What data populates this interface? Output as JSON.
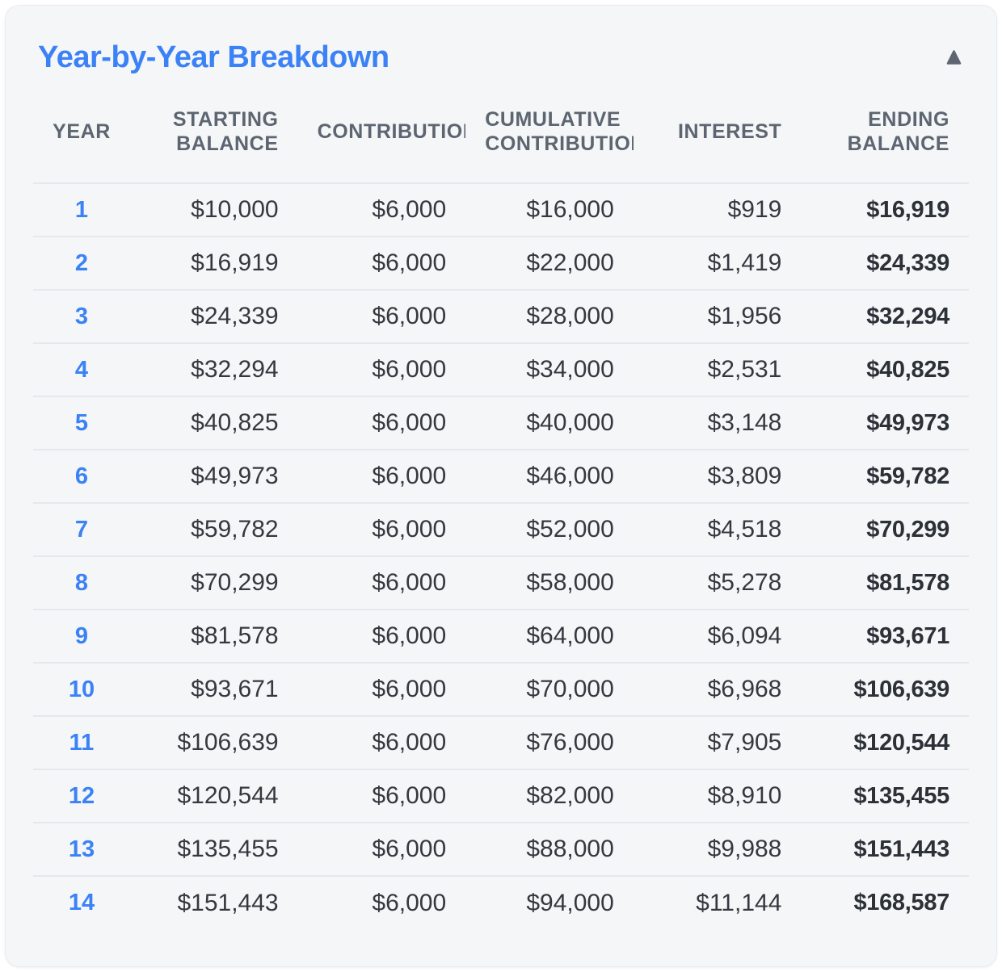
{
  "card": {
    "title": "Year-by-Year Breakdown"
  },
  "table": {
    "columns": [
      {
        "key": "year",
        "label": "YEAR"
      },
      {
        "key": "starting-balance",
        "label": "STARTING BALANCE"
      },
      {
        "key": "contributions",
        "label": "CONTRIBUTIONS",
        "clipped": true
      },
      {
        "key": "cumulative-contributions",
        "label": "CUMULATIVE CONTRIBUTIONS",
        "clipped": true
      },
      {
        "key": "interest",
        "label": "INTEREST"
      },
      {
        "key": "ending-balance",
        "label": "ENDING BALANCE"
      }
    ],
    "rows": [
      [
        "1",
        "$10,000",
        "$6,000",
        "$16,000",
        "$919",
        "$16,919"
      ],
      [
        "2",
        "$16,919",
        "$6,000",
        "$22,000",
        "$1,419",
        "$24,339"
      ],
      [
        "3",
        "$24,339",
        "$6,000",
        "$28,000",
        "$1,956",
        "$32,294"
      ],
      [
        "4",
        "$32,294",
        "$6,000",
        "$34,000",
        "$2,531",
        "$40,825"
      ],
      [
        "5",
        "$40,825",
        "$6,000",
        "$40,000",
        "$3,148",
        "$49,973"
      ],
      [
        "6",
        "$49,973",
        "$6,000",
        "$46,000",
        "$3,809",
        "$59,782"
      ],
      [
        "7",
        "$59,782",
        "$6,000",
        "$52,000",
        "$4,518",
        "$70,299"
      ],
      [
        "8",
        "$70,299",
        "$6,000",
        "$58,000",
        "$5,278",
        "$81,578"
      ],
      [
        "9",
        "$81,578",
        "$6,000",
        "$64,000",
        "$6,094",
        "$93,671"
      ],
      [
        "10",
        "$93,671",
        "$6,000",
        "$70,000",
        "$6,968",
        "$106,639"
      ],
      [
        "11",
        "$106,639",
        "$6,000",
        "$76,000",
        "$7,905",
        "$120,544"
      ],
      [
        "12",
        "$120,544",
        "$6,000",
        "$82,000",
        "$8,910",
        "$135,455"
      ],
      [
        "13",
        "$135,455",
        "$6,000",
        "$88,000",
        "$9,988",
        "$151,443"
      ],
      [
        "14",
        "$151,443",
        "$6,000",
        "$94,000",
        "$11,144",
        "$168,587"
      ]
    ]
  },
  "icons": {
    "collapse": "triangle-up-icon"
  },
  "colors": {
    "accent": "#3b82f6",
    "text": "#35393f",
    "text-bold": "#2c3138",
    "muted": "#5c6570",
    "divider": "#e6e8ec",
    "card-bg": "#f5f6f8",
    "card-border": "#e8ebef",
    "icon": "#5f6673",
    "page-bg": "#ffffff"
  }
}
